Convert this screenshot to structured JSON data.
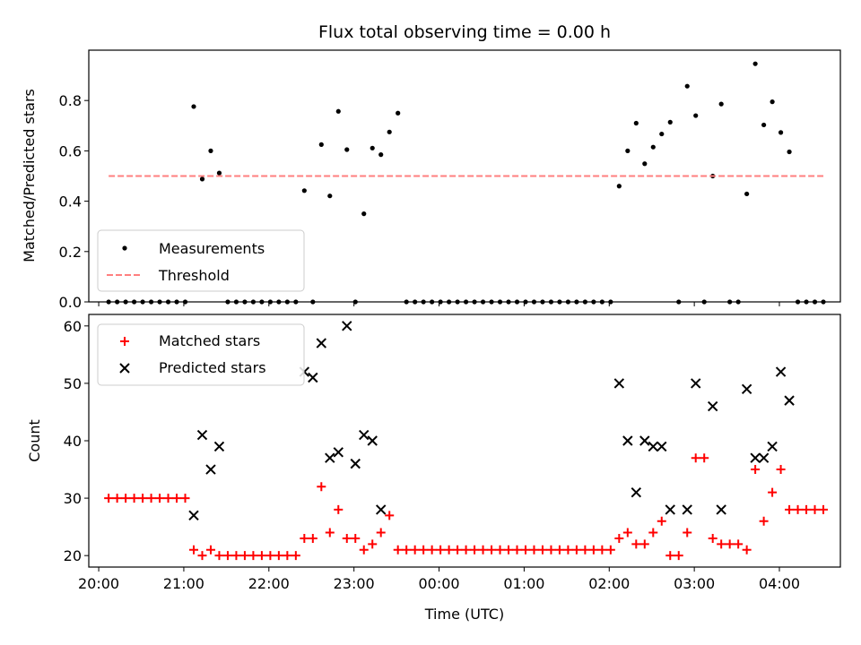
{
  "chart_data": [
    {
      "type": "scatter",
      "title": "Flux total observing time = 0.00 h",
      "xlabel": "",
      "ylabel": "Matched/Predicted stars",
      "ylim": [
        0,
        1.0
      ],
      "yticks": [
        0.0,
        0.2,
        0.4,
        0.6,
        0.8
      ],
      "ytick_labels": [
        "0.0",
        "0.2",
        "0.4",
        "0.6",
        "0.8"
      ],
      "xlim": [
        "19:53",
        "04:43"
      ],
      "xticks": [
        "20:00",
        "21:00",
        "22:00",
        "23:00",
        "00:00",
        "01:00",
        "02:00",
        "03:00",
        "04:00"
      ],
      "legend": "lower-left",
      "series": [
        {
          "name": "Measurements",
          "color": "#000000",
          "marker": "dot",
          "points": [
            [
              "20:07",
              0
            ],
            [
              "20:13",
              0
            ],
            [
              "20:19",
              0
            ],
            [
              "20:25",
              0
            ],
            [
              "20:31",
              0
            ],
            [
              "20:37",
              0
            ],
            [
              "20:43",
              0
            ],
            [
              "20:49",
              0
            ],
            [
              "20:55",
              0
            ],
            [
              "21:01",
              0
            ],
            [
              "21:07",
              0.776
            ],
            [
              "21:13",
              0.488
            ],
            [
              "21:19",
              0.6
            ],
            [
              "21:25",
              0.512
            ],
            [
              "21:31",
              0
            ],
            [
              "21:37",
              0
            ],
            [
              "21:43",
              0
            ],
            [
              "21:49",
              0
            ],
            [
              "21:55",
              0
            ],
            [
              "22:01",
              0
            ],
            [
              "22:07",
              0
            ],
            [
              "22:13",
              0
            ],
            [
              "22:19",
              0
            ],
            [
              "22:25",
              0.442
            ],
            [
              "22:31",
              0
            ],
            [
              "22:37",
              0.625
            ],
            [
              "22:43",
              0.421
            ],
            [
              "22:49",
              0.757
            ],
            [
              "22:55",
              0.605
            ],
            [
              "23:01",
              0
            ],
            [
              "23:07",
              0.35
            ],
            [
              "23:13",
              0.611
            ],
            [
              "23:19",
              0.585
            ],
            [
              "23:25",
              0.675
            ],
            [
              "23:31",
              0.75
            ],
            [
              "23:37",
              0
            ],
            [
              "23:43",
              0
            ],
            [
              "23:49",
              0
            ],
            [
              "23:55",
              0
            ],
            [
              "00:01",
              0
            ],
            [
              "00:07",
              0
            ],
            [
              "00:13",
              0
            ],
            [
              "00:19",
              0
            ],
            [
              "00:25",
              0
            ],
            [
              "00:31",
              0
            ],
            [
              "00:37",
              0
            ],
            [
              "00:43",
              0
            ],
            [
              "00:49",
              0
            ],
            [
              "00:55",
              0
            ],
            [
              "01:01",
              0
            ],
            [
              "01:07",
              0
            ],
            [
              "01:13",
              0
            ],
            [
              "01:19",
              0
            ],
            [
              "01:25",
              0
            ],
            [
              "01:31",
              0
            ],
            [
              "01:37",
              0
            ],
            [
              "01:43",
              0
            ],
            [
              "01:49",
              0
            ],
            [
              "01:55",
              0
            ],
            [
              "02:01",
              0
            ],
            [
              "02:07",
              0.46
            ],
            [
              "02:13",
              0.6
            ],
            [
              "02:19",
              0.71
            ],
            [
              "02:25",
              0.549
            ],
            [
              "02:31",
              0.615
            ],
            [
              "02:37",
              0.667
            ],
            [
              "02:43",
              0.714
            ],
            [
              "02:49",
              0
            ],
            [
              "02:55",
              0.857
            ],
            [
              "03:01",
              0.74
            ],
            [
              "03:07",
              0
            ],
            [
              "03:13",
              0.5
            ],
            [
              "03:19",
              0.786
            ],
            [
              "03:25",
              0
            ],
            [
              "03:31",
              0
            ],
            [
              "03:37",
              0.429
            ],
            [
              "03:43",
              0.946
            ],
            [
              "03:49",
              0.703
            ],
            [
              "03:55",
              0.795
            ],
            [
              "04:01",
              0.673
            ],
            [
              "04:07",
              0.596
            ],
            [
              "04:13",
              0
            ],
            [
              "04:19",
              0
            ],
            [
              "04:25",
              0
            ],
            [
              "04:31",
              0
            ]
          ]
        },
        {
          "name": "Threshold",
          "color": "#ff7f7f",
          "style": "dashed",
          "points": [
            [
              "20:07",
              0.5
            ],
            [
              "04:31",
              0.5
            ]
          ]
        }
      ]
    },
    {
      "type": "scatter",
      "title": "",
      "xlabel": "Time (UTC)",
      "ylabel": "Count",
      "ylim": [
        18,
        62
      ],
      "yticks": [
        20,
        30,
        40,
        50,
        60
      ],
      "ytick_labels": [
        "20",
        "30",
        "40",
        "50",
        "60"
      ],
      "xlim": [
        "19:53",
        "04:43"
      ],
      "xticks": [
        "20:00",
        "21:00",
        "22:00",
        "23:00",
        "00:00",
        "01:00",
        "02:00",
        "03:00",
        "04:00"
      ],
      "xtick_labels": [
        "20:00",
        "21:00",
        "22:00",
        "23:00",
        "00:00",
        "01:00",
        "02:00",
        "03:00",
        "04:00"
      ],
      "legend": "upper-left",
      "series": [
        {
          "name": "Matched stars",
          "color": "#ff0000",
          "marker": "plus",
          "points": [
            [
              "20:07",
              30
            ],
            [
              "20:13",
              30
            ],
            [
              "20:19",
              30
            ],
            [
              "20:25",
              30
            ],
            [
              "20:31",
              30
            ],
            [
              "20:37",
              30
            ],
            [
              "20:43",
              30
            ],
            [
              "20:49",
              30
            ],
            [
              "20:55",
              30
            ],
            [
              "21:01",
              30
            ],
            [
              "21:07",
              21
            ],
            [
              "21:13",
              20
            ],
            [
              "21:19",
              21
            ],
            [
              "21:25",
              20
            ],
            [
              "21:31",
              20
            ],
            [
              "21:37",
              20
            ],
            [
              "21:43",
              20
            ],
            [
              "21:49",
              20
            ],
            [
              "21:55",
              20
            ],
            [
              "22:01",
              20
            ],
            [
              "22:07",
              20
            ],
            [
              "22:13",
              20
            ],
            [
              "22:19",
              20
            ],
            [
              "22:25",
              23
            ],
            [
              "22:31",
              23
            ],
            [
              "22:37",
              32
            ],
            [
              "22:43",
              24
            ],
            [
              "22:49",
              28
            ],
            [
              "22:55",
              23
            ],
            [
              "23:01",
              23
            ],
            [
              "23:07",
              21
            ],
            [
              "23:13",
              22
            ],
            [
              "23:19",
              24
            ],
            [
              "23:25",
              27
            ],
            [
              "23:31",
              21
            ],
            [
              "23:37",
              21
            ],
            [
              "23:43",
              21
            ],
            [
              "23:49",
              21
            ],
            [
              "23:55",
              21
            ],
            [
              "00:01",
              21
            ],
            [
              "00:07",
              21
            ],
            [
              "00:13",
              21
            ],
            [
              "00:19",
              21
            ],
            [
              "00:25",
              21
            ],
            [
              "00:31",
              21
            ],
            [
              "00:37",
              21
            ],
            [
              "00:43",
              21
            ],
            [
              "00:49",
              21
            ],
            [
              "00:55",
              21
            ],
            [
              "01:01",
              21
            ],
            [
              "01:07",
              21
            ],
            [
              "01:13",
              21
            ],
            [
              "01:19",
              21
            ],
            [
              "01:25",
              21
            ],
            [
              "01:31",
              21
            ],
            [
              "01:37",
              21
            ],
            [
              "01:43",
              21
            ],
            [
              "01:49",
              21
            ],
            [
              "01:55",
              21
            ],
            [
              "02:01",
              21
            ],
            [
              "02:07",
              23
            ],
            [
              "02:13",
              24
            ],
            [
              "02:19",
              22
            ],
            [
              "02:25",
              22
            ],
            [
              "02:31",
              24
            ],
            [
              "02:37",
              26
            ],
            [
              "02:43",
              20
            ],
            [
              "02:49",
              20
            ],
            [
              "02:55",
              24
            ],
            [
              "03:01",
              37
            ],
            [
              "03:07",
              37
            ],
            [
              "03:13",
              23
            ],
            [
              "03:19",
              22
            ],
            [
              "03:25",
              22
            ],
            [
              "03:31",
              22
            ],
            [
              "03:37",
              21
            ],
            [
              "03:43",
              35
            ],
            [
              "03:49",
              26
            ],
            [
              "03:55",
              31
            ],
            [
              "04:01",
              35
            ],
            [
              "04:07",
              28
            ],
            [
              "04:13",
              28
            ],
            [
              "04:19",
              28
            ],
            [
              "04:25",
              28
            ],
            [
              "04:31",
              28
            ]
          ]
        },
        {
          "name": "Predicted stars",
          "color": "#000000",
          "marker": "x",
          "points": [
            [
              "21:07",
              27
            ],
            [
              "21:13",
              41
            ],
            [
              "21:19",
              35
            ],
            [
              "21:25",
              39
            ],
            [
              "22:25",
              52
            ],
            [
              "22:31",
              51
            ],
            [
              "22:37",
              57
            ],
            [
              "22:43",
              37
            ],
            [
              "22:49",
              38
            ],
            [
              "22:55",
              60
            ],
            [
              "23:01",
              36
            ],
            [
              "23:07",
              41
            ],
            [
              "23:13",
              40
            ],
            [
              "23:19",
              28
            ],
            [
              "02:07",
              50
            ],
            [
              "02:13",
              40
            ],
            [
              "02:19",
              31
            ],
            [
              "02:25",
              40
            ],
            [
              "02:31",
              39
            ],
            [
              "02:37",
              39
            ],
            [
              "02:43",
              28
            ],
            [
              "02:55",
              28
            ],
            [
              "03:01",
              50
            ],
            [
              "03:13",
              46
            ],
            [
              "03:19",
              28
            ],
            [
              "03:37",
              49
            ],
            [
              "03:43",
              37
            ],
            [
              "03:49",
              37
            ],
            [
              "03:55",
              39
            ],
            [
              "04:01",
              52
            ],
            [
              "04:07",
              47
            ]
          ]
        }
      ]
    }
  ]
}
